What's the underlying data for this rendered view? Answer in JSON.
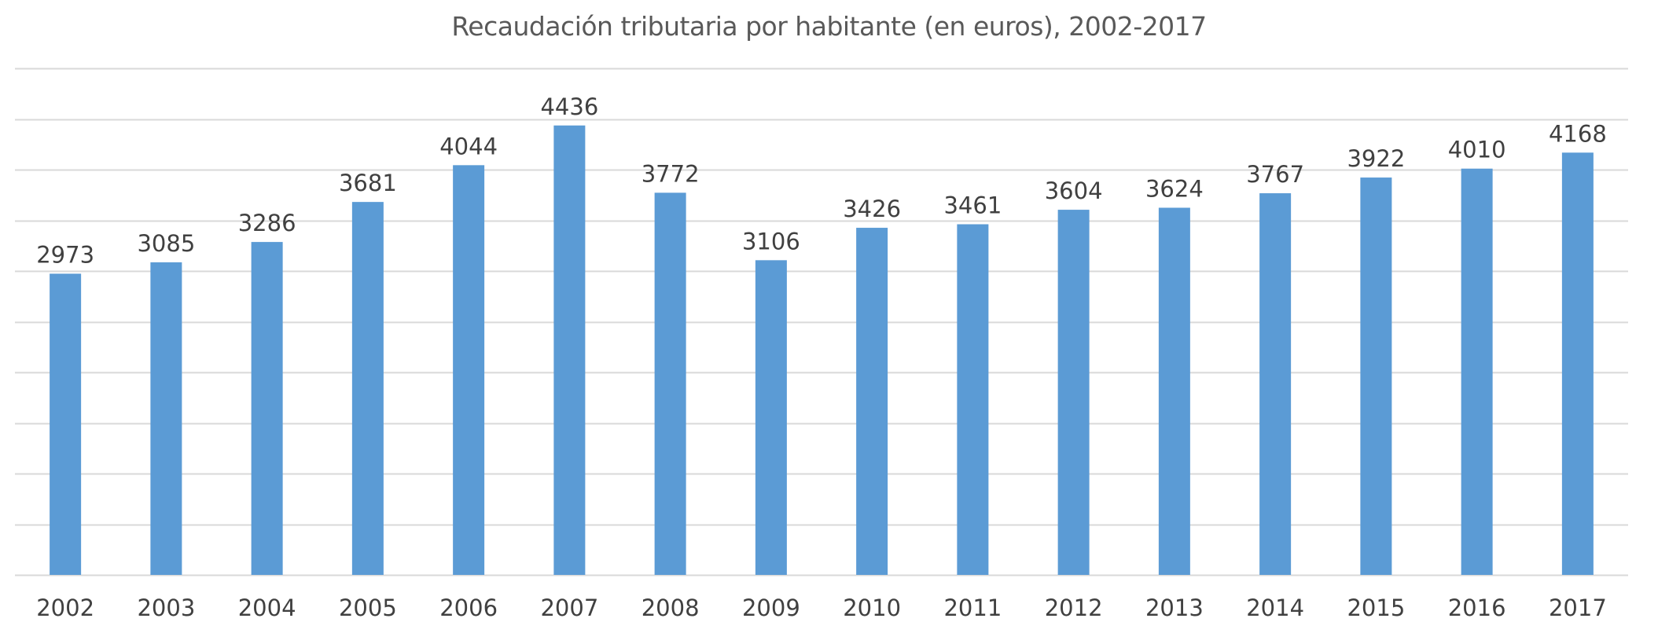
{
  "chart_data": {
    "type": "bar",
    "title": "Recaudación tributaria por habitante (en euros), 2002-2017",
    "categories": [
      "2002",
      "2003",
      "2004",
      "2005",
      "2006",
      "2007",
      "2008",
      "2009",
      "2010",
      "2011",
      "2012",
      "2013",
      "2014",
      "2015",
      "2016",
      "2017"
    ],
    "values": [
      2973,
      3085,
      3286,
      3681,
      4044,
      4436,
      3772,
      3106,
      3426,
      3461,
      3604,
      3624,
      3767,
      3922,
      4010,
      4168
    ],
    "xlabel": "",
    "ylabel": "",
    "ylim": [
      0,
      5000
    ],
    "grid": true,
    "y_tick_step": 500,
    "y_tick_labels_shown": false,
    "data_labels": true,
    "legend": "none",
    "colors": {
      "bar": "#5B9BD5",
      "grid": "#D9D9D9",
      "text": "#404040"
    }
  }
}
